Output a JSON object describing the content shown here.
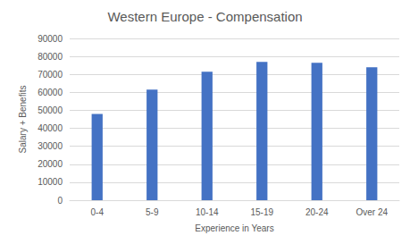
{
  "chart_data": {
    "type": "bar",
    "title": "Western Europe - Compensation",
    "x_label": "Experience in Years",
    "y_label": "Salary + Benefits",
    "categories": [
      "0-4",
      "5-9",
      "10-14",
      "15-19",
      "20-24",
      "Over 24"
    ],
    "values": [
      48000,
      61500,
      71500,
      77000,
      76500,
      74000
    ],
    "color": "#4472c4",
    "ylim": [
      0,
      90000
    ],
    "yticks": [
      0,
      10000,
      20000,
      30000,
      40000,
      50000,
      60000,
      70000,
      80000,
      90000
    ],
    "grid": true
  }
}
